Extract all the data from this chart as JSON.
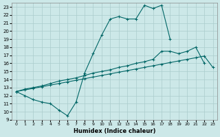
{
  "xlabel": "Humidex (Indice chaleur)",
  "bg_color": "#cce8e8",
  "grid_color": "#aacccc",
  "line_color": "#006666",
  "xlim": [
    -0.5,
    23.5
  ],
  "ylim": [
    9,
    23.5
  ],
  "xticks": [
    0,
    1,
    2,
    3,
    4,
    5,
    6,
    7,
    8,
    9,
    10,
    11,
    12,
    13,
    14,
    15,
    16,
    17,
    18,
    19,
    20,
    21,
    22,
    23
  ],
  "yticks": [
    9,
    10,
    11,
    12,
    13,
    14,
    15,
    16,
    17,
    18,
    19,
    20,
    21,
    22,
    23
  ],
  "line1_x": [
    0,
    1,
    2,
    3,
    4,
    5,
    6,
    7,
    8,
    9,
    10,
    11,
    12,
    13,
    14,
    15,
    16,
    17,
    18
  ],
  "line1_y": [
    12.5,
    12.0,
    11.5,
    11.2,
    11.0,
    10.2,
    9.5,
    11.2,
    14.8,
    17.2,
    19.5,
    21.5,
    21.8,
    21.5,
    21.5,
    23.2,
    22.8,
    23.2,
    19.0
  ],
  "line2_x": [
    0,
    1,
    2,
    3,
    4,
    5,
    6,
    7,
    8,
    9,
    10,
    11,
    12,
    13,
    14,
    15,
    16,
    17,
    18,
    19,
    20,
    21,
    22
  ],
  "line2_y": [
    12.5,
    12.8,
    13.0,
    13.2,
    13.5,
    13.8,
    14.0,
    14.2,
    14.5,
    14.8,
    15.0,
    15.2,
    15.5,
    15.7,
    16.0,
    16.2,
    16.5,
    17.5,
    17.5,
    17.2,
    17.5,
    18.0,
    16.0
  ],
  "line3_x": [
    0,
    1,
    2,
    3,
    4,
    5,
    6,
    7,
    8,
    9,
    10,
    11,
    12,
    13,
    14,
    15,
    16,
    17,
    18,
    19,
    20,
    21,
    22,
    23
  ],
  "line3_y": [
    12.5,
    12.7,
    12.9,
    13.1,
    13.3,
    13.5,
    13.7,
    13.9,
    14.1,
    14.3,
    14.5,
    14.7,
    14.9,
    15.1,
    15.3,
    15.5,
    15.7,
    15.9,
    16.1,
    16.3,
    16.5,
    16.7,
    16.9,
    15.5
  ]
}
